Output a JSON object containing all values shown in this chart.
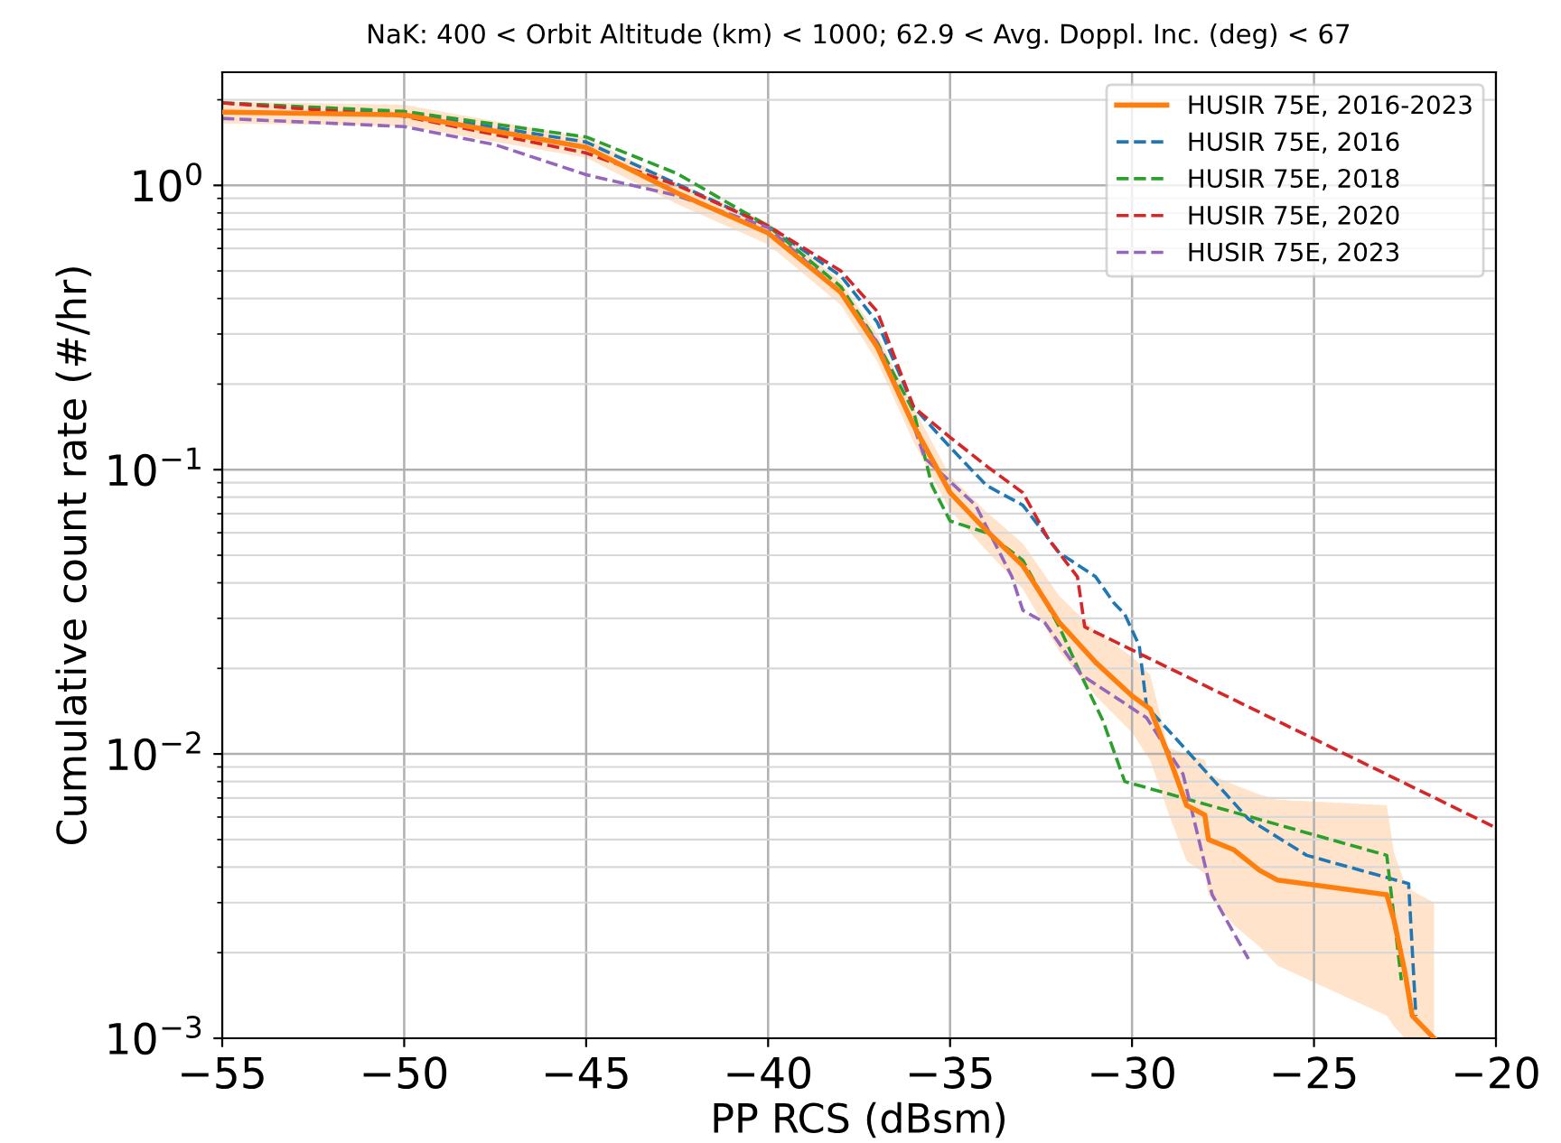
{
  "chart_data": {
    "type": "line",
    "title": "NaK: 400 < Orbit Altitude (km) < 1000; 62.9 < Avg. Doppl. Inc. (deg) < 67",
    "xlabel": "PP RCS (dBsm)",
    "ylabel": "Cumulative count rate (#/hr)",
    "log": "y",
    "grid": true,
    "legend": "top right",
    "xlim": [
      -55,
      -20
    ],
    "ylim": [
      0.001,
      2.5
    ],
    "xticks": [
      {
        "value": -55,
        "label": "−55"
      },
      {
        "value": -50,
        "label": "−50"
      },
      {
        "value": -45,
        "label": "−45"
      },
      {
        "value": -40,
        "label": "−40"
      },
      {
        "value": -35,
        "label": "−35"
      },
      {
        "value": -30,
        "label": "−30"
      },
      {
        "value": -25,
        "label": "−25"
      },
      {
        "value": -20,
        "label": "−20"
      }
    ],
    "yticks": [
      {
        "value": 0.001,
        "label": "10$^{−3}$"
      },
      {
        "value": 0.01,
        "label": "10$^{−2}$"
      },
      {
        "value": 0.1,
        "label": "10$^{−1}$"
      },
      {
        "value": 1,
        "label": "10$^{0}$"
      }
    ],
    "series": [
      {
        "name": "HUSIR 75E, 2016-2023",
        "color": "#ff7f0e",
        "line_style": "solid",
        "x": [
          -55,
          -50,
          -45,
          -42.5,
          -40,
          -38,
          -37,
          -36,
          -35,
          -34,
          -33,
          -32,
          -31,
          -30,
          -29.5,
          -29,
          -28.5,
          -28,
          -27.9,
          -27.2,
          -26.5,
          -26,
          -23,
          -22.8,
          -22.5,
          -22.3,
          -21.7
        ],
        "values": [
          1.81,
          1.77,
          1.36,
          0.94,
          0.68,
          0.42,
          0.27,
          0.143,
          0.083,
          0.061,
          0.046,
          0.029,
          0.021,
          0.016,
          0.0144,
          0.0099,
          0.0066,
          0.0061,
          0.005,
          0.0046,
          0.0039,
          0.0036,
          0.0032,
          0.0026,
          0.0017,
          0.0012,
          0.001
        ],
        "lower": [
          1.65,
          1.62,
          1.25,
          0.86,
          0.62,
          0.38,
          0.24,
          0.125,
          0.072,
          0.052,
          0.038,
          0.023,
          0.016,
          0.0119,
          0.0095,
          0.0062,
          0.0042,
          0.0038,
          0.0032,
          0.0025,
          0.0021,
          0.0018,
          0.0012,
          0.0011,
          0.001,
          0.001,
          0.001
        ],
        "upper": [
          1.97,
          1.92,
          1.47,
          1.02,
          0.74,
          0.46,
          0.3,
          0.165,
          0.095,
          0.071,
          0.055,
          0.036,
          0.027,
          0.022,
          0.019,
          0.0105,
          0.01,
          0.0095,
          0.0085,
          0.0078,
          0.0072,
          0.0069,
          0.0066,
          0.0045,
          0.0035,
          0.0033,
          0.003
        ]
      },
      {
        "name": "HUSIR 75E, 2016",
        "color": "#1f77b4",
        "line_style": "dashed",
        "x": [
          -55,
          -50,
          -45,
          -40,
          -38,
          -37,
          -36,
          -35,
          -34,
          -33,
          -32,
          -31,
          -30.5,
          -30.2,
          -29.8,
          -29.6,
          -28.5,
          -26.8,
          -25.2,
          -22.4,
          -22.2
        ],
        "values": [
          1.95,
          1.8,
          1.42,
          0.72,
          0.48,
          0.33,
          0.166,
          0.12,
          0.088,
          0.075,
          0.051,
          0.042,
          0.034,
          0.031,
          0.024,
          0.0147,
          0.0103,
          0.0059,
          0.0044,
          0.0035,
          0.0012
        ]
      },
      {
        "name": "HUSIR 75E, 2018",
        "color": "#2ca02c",
        "line_style": "dashed",
        "x": [
          -55,
          -50,
          -45,
          -42.5,
          -40,
          -38,
          -37,
          -36,
          -35.5,
          -35,
          -34,
          -33,
          -32,
          -31.3,
          -30.8,
          -30.2,
          -23.0,
          -22.6
        ],
        "values": [
          1.95,
          1.82,
          1.48,
          1.1,
          0.72,
          0.44,
          0.28,
          0.16,
          0.088,
          0.066,
          0.06,
          0.048,
          0.028,
          0.0178,
          0.0131,
          0.008,
          0.0044,
          0.0016
        ]
      },
      {
        "name": "HUSIR 75E, 2020",
        "color": "#d62728",
        "line_style": "dashed",
        "x": [
          -55,
          -50,
          -45,
          -42.5,
          -40,
          -38,
          -37,
          -36,
          -35,
          -34,
          -33,
          -32.3,
          -31.5,
          -31.3,
          -20
        ],
        "values": [
          1.95,
          1.75,
          1.3,
          1.0,
          0.72,
          0.5,
          0.36,
          0.166,
          0.13,
          0.103,
          0.083,
          0.057,
          0.042,
          0.028,
          0.0055
        ]
      },
      {
        "name": "HUSIR 75E, 2023",
        "color": "#9467bd",
        "line_style": "dashed",
        "x": [
          -55,
          -50,
          -47.5,
          -45,
          -42.5,
          -40,
          -38,
          -37,
          -36,
          -35.7,
          -34.3,
          -33.3,
          -33.0,
          -32.4,
          -31.4,
          -29.6,
          -28.6,
          -27.8,
          -26.8
        ],
        "values": [
          1.72,
          1.61,
          1.39,
          1.09,
          0.92,
          0.71,
          0.42,
          0.28,
          0.143,
          0.11,
          0.075,
          0.042,
          0.032,
          0.029,
          0.019,
          0.0134,
          0.0085,
          0.0032,
          0.0019
        ]
      }
    ]
  }
}
